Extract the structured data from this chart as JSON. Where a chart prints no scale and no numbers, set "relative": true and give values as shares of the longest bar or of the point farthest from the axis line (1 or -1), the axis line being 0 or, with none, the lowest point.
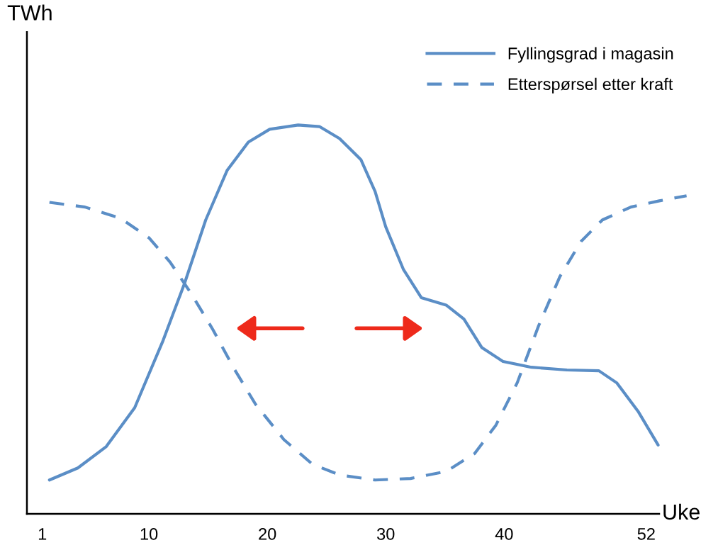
{
  "chart_data": {
    "type": "line",
    "relative": true,
    "xlabel": "Uke",
    "ylabel": "TWh",
    "xlim": [
      -0.3,
      55.6
    ],
    "xticks": [
      1,
      10,
      20,
      30,
      40,
      52
    ],
    "series": [
      {
        "name": "Fyllingsgrad i magasin",
        "color": "#5b8ec6",
        "line_style": "solid",
        "x": [
          1.6,
          4.0,
          6.4,
          8.8,
          11.2,
          13.0,
          14.8,
          16.6,
          18.4,
          20.2,
          22.6,
          24.4,
          26.1,
          27.9,
          29.1,
          30.0,
          31.5,
          33.0,
          35.1,
          36.6,
          38.1,
          39.9,
          42.3,
          45.3,
          48.0,
          49.5,
          51.3,
          53.0
        ],
        "values": [
          0.087,
          0.118,
          0.173,
          0.273,
          0.446,
          0.592,
          0.756,
          0.883,
          0.956,
          0.989,
          1.0,
          0.996,
          0.965,
          0.911,
          0.829,
          0.738,
          0.628,
          0.556,
          0.537,
          0.501,
          0.428,
          0.392,
          0.377,
          0.37,
          0.368,
          0.337,
          0.264,
          0.177
        ]
      },
      {
        "name": "Etterspørsel etter kraft",
        "color": "#5b8ec6",
        "line_style": "dashed",
        "x": [
          1.6,
          4.6,
          7.6,
          10.0,
          11.8,
          13.6,
          15.4,
          17.2,
          19.0,
          21.4,
          23.8,
          26.1,
          29.1,
          32.1,
          35.1,
          37.5,
          39.3,
          41.1,
          42.9,
          44.7,
          46.5,
          48.3,
          50.7,
          53.1,
          55.4
        ],
        "values": [
          0.801,
          0.789,
          0.76,
          0.71,
          0.647,
          0.565,
          0.474,
          0.373,
          0.282,
          0.191,
          0.128,
          0.1,
          0.087,
          0.091,
          0.109,
          0.155,
          0.228,
          0.337,
          0.483,
          0.61,
          0.701,
          0.756,
          0.789,
          0.805,
          0.818
        ]
      }
    ],
    "legend": "top right"
  }
}
